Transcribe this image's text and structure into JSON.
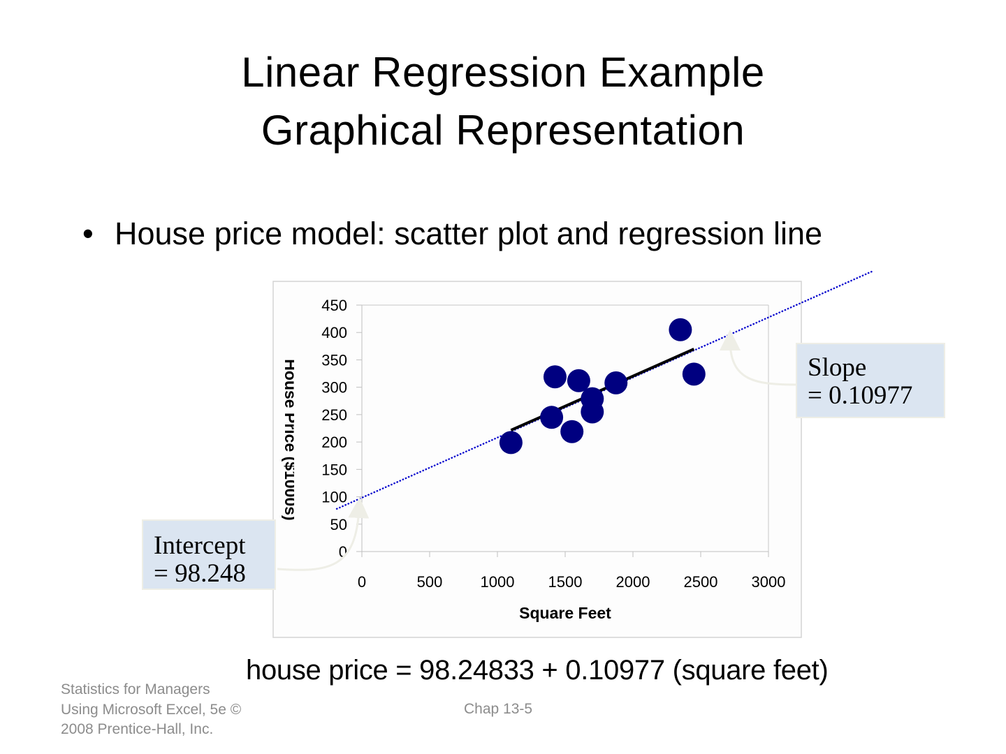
{
  "slide": {
    "title_line1": "Linear Regression Example",
    "title_line2": "Graphical Representation",
    "bullet_icon": "•",
    "bullet_text": "House price model:  scatter plot and regression line",
    "slope_callout": {
      "line1": "Slope",
      "line2": "= 0.10977"
    },
    "intercept_callout": {
      "line1": "Intercept",
      "line2": "= 98.248"
    },
    "equation": "house price = 98.24833 + 0.10977 (square feet)",
    "footer": {
      "source_line1": "Statistics for Managers",
      "source_line2": "Using Microsoft Excel, 5e ©",
      "source_line3": "2008 Prentice-Hall, Inc.",
      "page": "Chap 13-5"
    },
    "colors": {
      "marker": "#000080",
      "trendline": "#0000cc",
      "fit_line": "#000000",
      "callout_bg": "#dbe5f1",
      "arrow": "#eeeee6",
      "footer_text": "#8c8c8c"
    }
  },
  "chart_data": {
    "type": "scatter",
    "title": "",
    "xlabel": "Square Feet",
    "ylabel": "House Price ($1000s)",
    "xlim": [
      0,
      3000
    ],
    "ylim": [
      0,
      450
    ],
    "x_ticks": [
      "0",
      "500",
      "1000",
      "1500",
      "2000",
      "2500",
      "3000"
    ],
    "y_ticks": [
      "0",
      "50",
      "100",
      "150",
      "200",
      "250",
      "300",
      "350",
      "400",
      "450"
    ],
    "grid": false,
    "legend": "none",
    "series": [
      {
        "name": "House Price",
        "points": [
          {
            "x": 1400,
            "y": 245
          },
          {
            "x": 1600,
            "y": 312
          },
          {
            "x": 1700,
            "y": 279
          },
          {
            "x": 1875,
            "y": 308
          },
          {
            "x": 1100,
            "y": 199
          },
          {
            "x": 1550,
            "y": 219
          },
          {
            "x": 2350,
            "y": 405
          },
          {
            "x": 2450,
            "y": 324
          },
          {
            "x": 1425,
            "y": 319
          },
          {
            "x": 1700,
            "y": 255
          }
        ]
      }
    ],
    "regression": {
      "intercept": 98.24833,
      "slope": 0.10977
    },
    "annotations": [
      "Slope = 0.10977",
      "Intercept = 98.248"
    ]
  }
}
